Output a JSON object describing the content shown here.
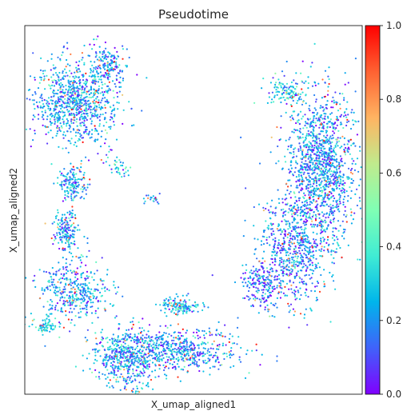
{
  "chart_data": {
    "type": "scatter",
    "title": "Pseudotime",
    "xlabel": "X_umap_aligned1",
    "ylabel": "X_umap_aligned2",
    "x_ticks_shown": false,
    "y_ticks_shown": false,
    "xlim": [
      0,
      1
    ],
    "ylim": [
      0,
      1
    ],
    "grid": false,
    "colormap": "rainbow",
    "colorbar": {
      "label": "",
      "range": [
        0.0,
        1.0
      ],
      "ticks": [
        "0.0",
        "0.2",
        "0.4",
        "0.6",
        "0.8",
        "1.0"
      ],
      "stops": [
        "#8000ff",
        "#4062fa",
        "#00b5eb",
        "#40ecd4",
        "#80ffb4",
        "#c0eb8d",
        "#ffb462",
        "#ff6232",
        "#ff0000"
      ]
    },
    "point_size": "small",
    "clusters": [
      {
        "label": "top-left cluster",
        "cx": 0.15,
        "cy": 0.79,
        "sx": 0.06,
        "sy": 0.055,
        "n": 900,
        "mean_value": 0.22
      },
      {
        "label": "top-left spur",
        "cx": 0.25,
        "cy": 0.9,
        "sx": 0.03,
        "sy": 0.025,
        "n": 150,
        "mean_value": 0.2
      },
      {
        "label": "left band 1",
        "cx": 0.14,
        "cy": 0.57,
        "sx": 0.02,
        "sy": 0.025,
        "n": 160,
        "mean_value": 0.22
      },
      {
        "label": "left band 2",
        "cx": 0.12,
        "cy": 0.44,
        "sx": 0.02,
        "sy": 0.03,
        "n": 180,
        "mean_value": 0.22
      },
      {
        "label": "left lower cluster",
        "cx": 0.15,
        "cy": 0.28,
        "sx": 0.05,
        "sy": 0.04,
        "n": 400,
        "mean_value": 0.22
      },
      {
        "label": "bottom-left small",
        "cx": 0.06,
        "cy": 0.185,
        "sx": 0.02,
        "sy": 0.012,
        "n": 70,
        "mean_value": 0.3
      },
      {
        "label": "bottom cluster",
        "cx": 0.3,
        "cy": 0.1,
        "sx": 0.05,
        "sy": 0.04,
        "n": 500,
        "mean_value": 0.22
      },
      {
        "label": "bottom strip",
        "cx": 0.45,
        "cy": 0.12,
        "sx": 0.09,
        "sy": 0.03,
        "n": 600,
        "mean_value": 0.2
      },
      {
        "label": "mid-bottom cluster",
        "cx": 0.46,
        "cy": 0.24,
        "sx": 0.03,
        "sy": 0.012,
        "n": 150,
        "mean_value": 0.25
      },
      {
        "label": "right arc upper",
        "cx": 0.88,
        "cy": 0.62,
        "sx": 0.05,
        "sy": 0.1,
        "n": 1300,
        "mean_value": 0.2
      },
      {
        "label": "right arc lower",
        "cx": 0.8,
        "cy": 0.4,
        "sx": 0.05,
        "sy": 0.08,
        "n": 700,
        "mean_value": 0.18
      },
      {
        "label": "right arc tail",
        "cx": 0.7,
        "cy": 0.3,
        "sx": 0.03,
        "sy": 0.03,
        "n": 200,
        "mean_value": 0.12
      },
      {
        "label": "right arc top",
        "cx": 0.78,
        "cy": 0.82,
        "sx": 0.03,
        "sy": 0.02,
        "n": 120,
        "mean_value": 0.3
      },
      {
        "label": "diagonal streak",
        "cx": 0.28,
        "cy": 0.62,
        "sx": 0.02,
        "sy": 0.015,
        "n": 40,
        "mean_value": 0.3
      },
      {
        "label": "small streak",
        "cx": 0.38,
        "cy": 0.53,
        "sx": 0.015,
        "sy": 0.008,
        "n": 20,
        "mean_value": 0.2
      }
    ]
  }
}
